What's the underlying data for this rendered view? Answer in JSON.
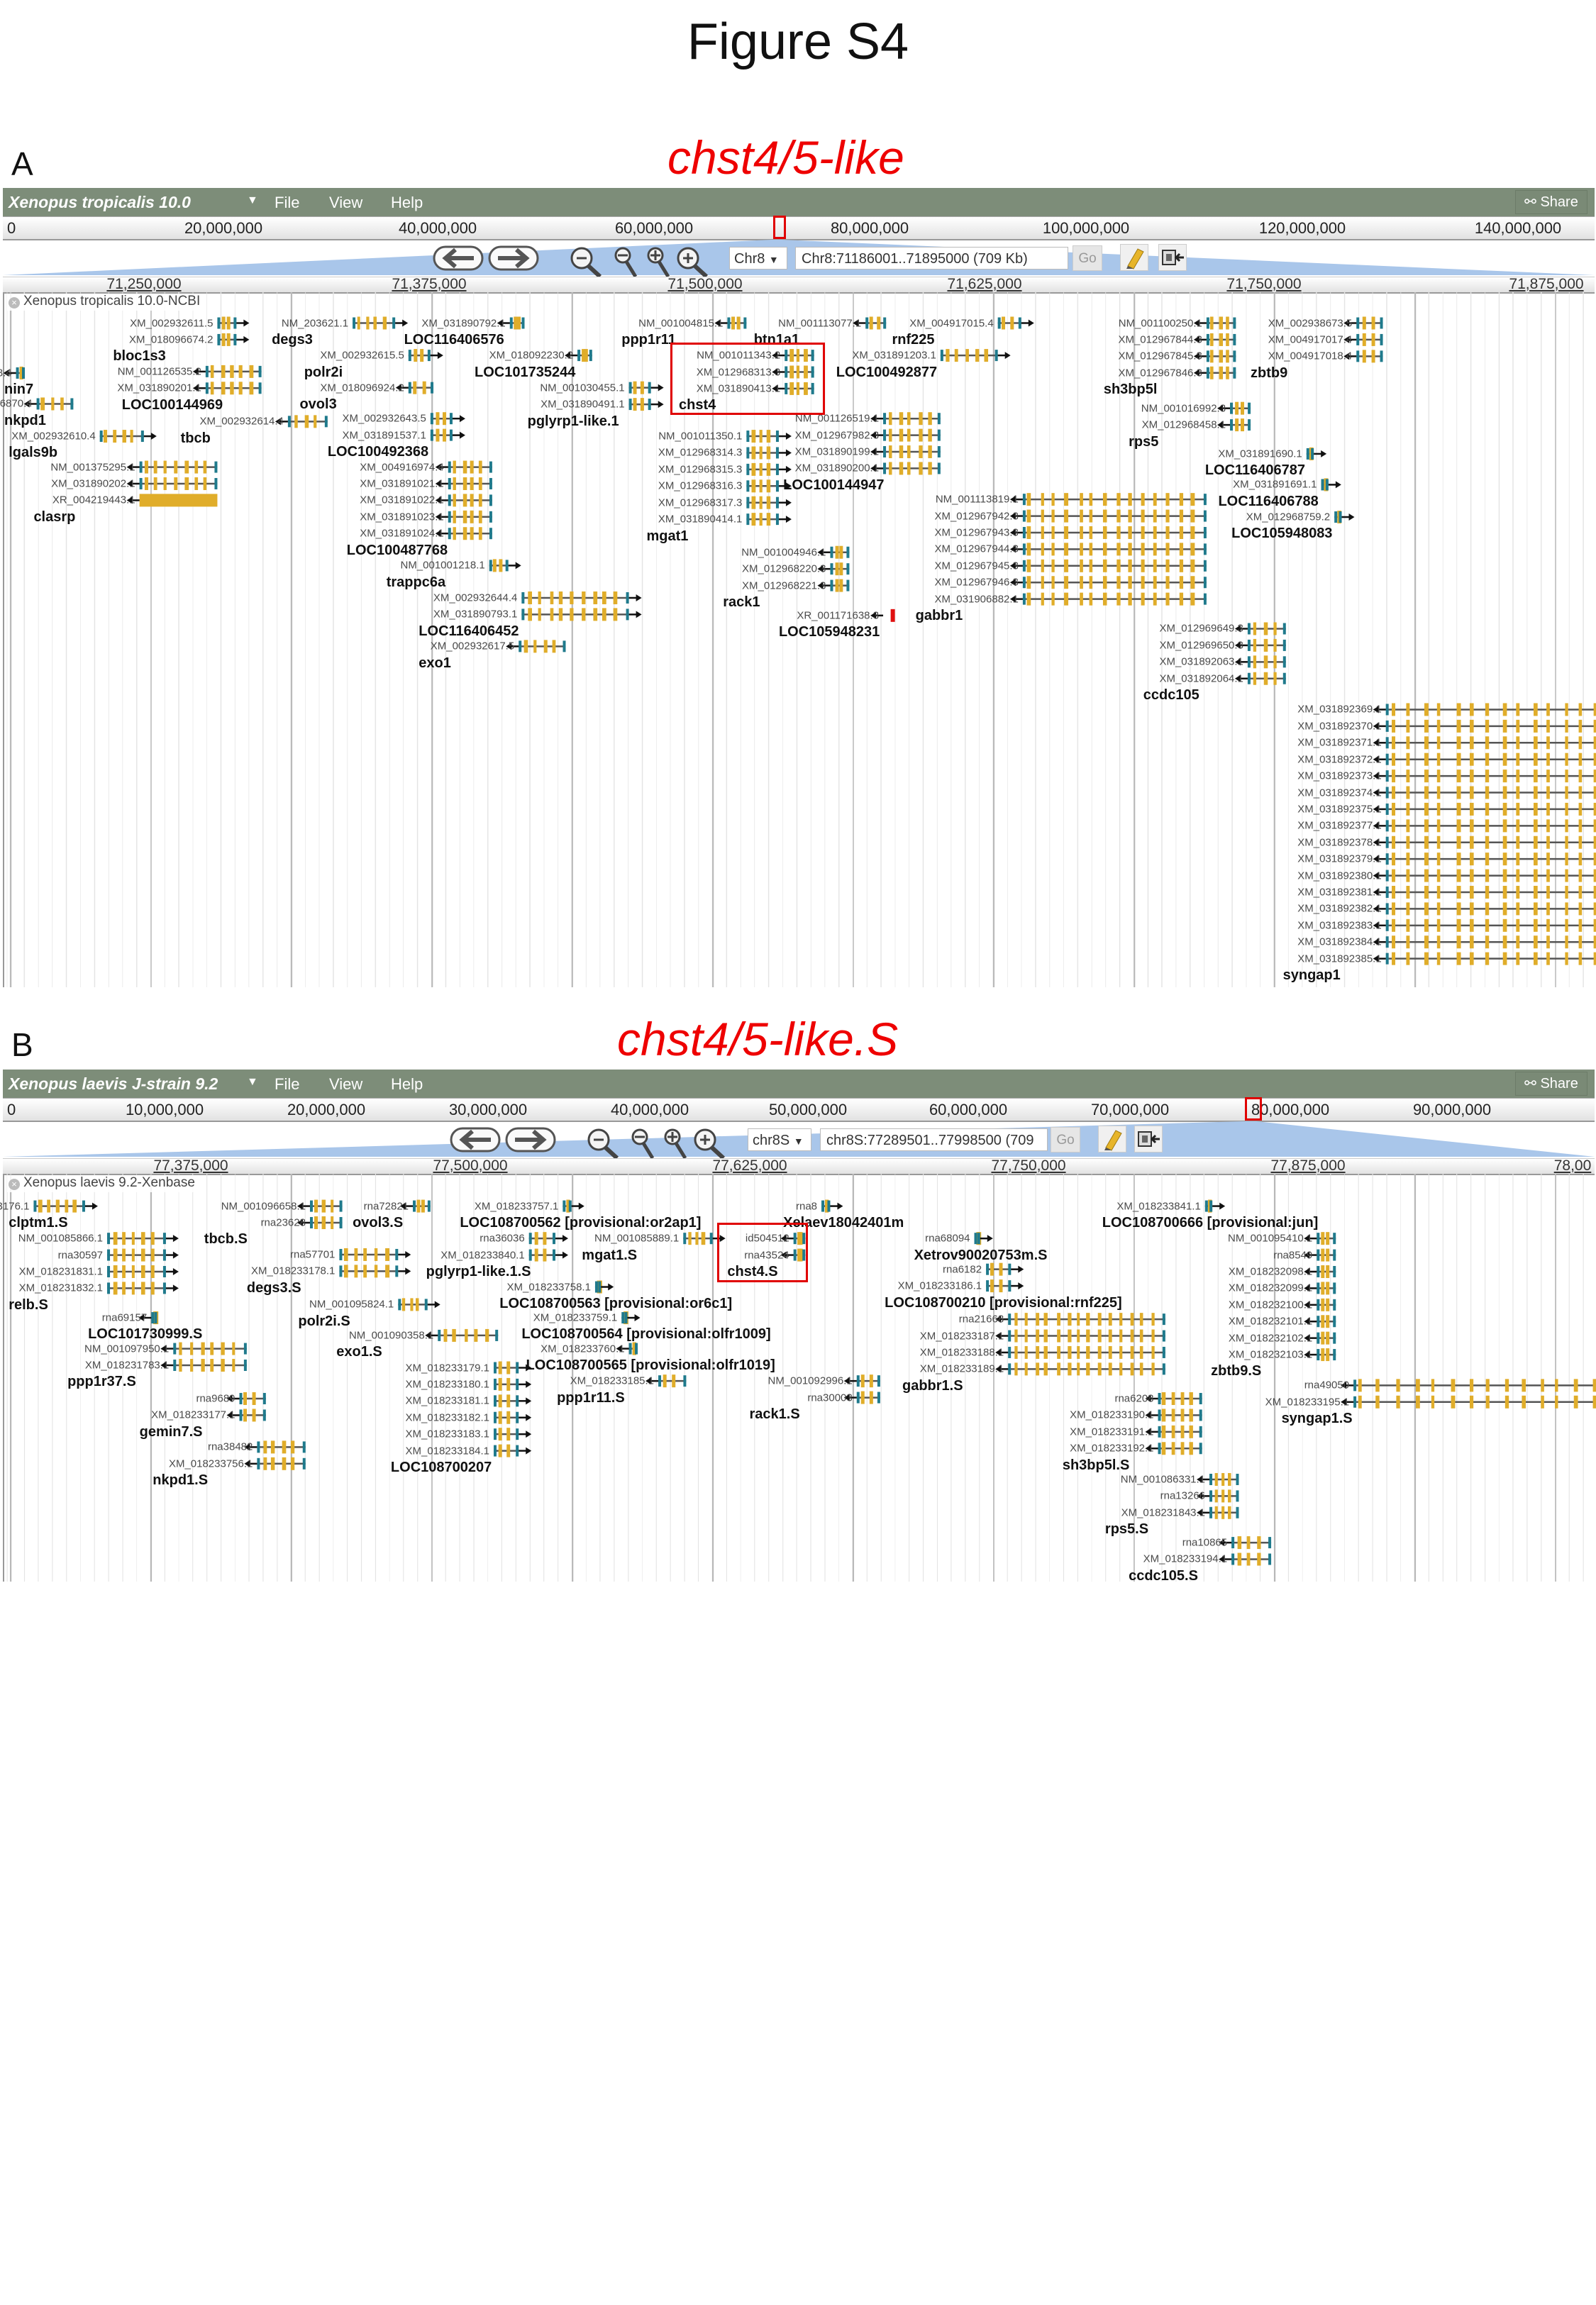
{
  "figure_title": "Figure S4",
  "colors": {
    "toolbar": "#7d8d79",
    "exon": "#e0ad2a",
    "utr": "#1f7a8c",
    "intron": "#555555",
    "annotation": "#ee0000",
    "ncrna": "#e01010",
    "overview_highlight": "#a9c6ea"
  },
  "panels": [
    {
      "letter": "A",
      "assembly": "Xenopus tropicalis 10.0",
      "menu": [
        "File",
        "View",
        "Help"
      ],
      "share": "Share",
      "overview_ticks": [
        "0",
        "20,000,000",
        "40,000,000",
        "60,000,000",
        "80,000,000",
        "100,000,000",
        "120,000,000",
        "140,000,000"
      ],
      "refseq": "Chr8",
      "location": "Chr8:71186001..71895000 (709 Kb)",
      "go": "Go",
      "detail_ticks": [
        "71,250,000",
        "71,375,000",
        "71,500,000",
        "71,625,000",
        "71,750,000",
        "71,875,000"
      ],
      "track_label": "Xenopus tropicalis 10.0-NCBI",
      "annotation": "chst4/5-like",
      "genes": [
        {
          "name": "bloc1s3",
          "strand": "+",
          "transcripts": [
            "XM_002932611.5",
            "XM_018096674.2"
          ]
        },
        {
          "name": "degs3",
          "strand": "+",
          "transcripts": [
            "NM_203621.1"
          ]
        },
        {
          "name": "LOC116406576",
          "strand": "-",
          "transcripts": [
            "XM_031890792.1"
          ]
        },
        {
          "name": "ppp1r11",
          "strand": "-",
          "transcripts": [
            "NM_001004815.1"
          ]
        },
        {
          "name": "btn1a1",
          "strand": "-",
          "transcripts": [
            "NM_001113077.1"
          ]
        },
        {
          "name": "rnf225",
          "strand": "+",
          "transcripts": [
            "XM_004917015.4"
          ]
        },
        {
          "name": "sh3bp5l",
          "strand": "-",
          "transcripts": [
            "NM_001100250.1",
            "XM_012967844.3",
            "XM_012967845.3",
            "XM_012967846.3"
          ]
        },
        {
          "name": "zbtb9",
          "strand": "-",
          "transcripts": [
            "XM_002938673.5",
            "XM_004917017.4",
            "XM_004917018.4"
          ]
        },
        {
          "name": "polr2i",
          "strand": "+",
          "transcripts": [
            "XM_002932615.5"
          ]
        },
        {
          "name": "LOC101735244",
          "strand": "-",
          "transcripts": [
            "XM_018092230.2"
          ]
        },
        {
          "name": "chst4",
          "strand": "-",
          "transcripts": [
            "NM_001011343.2",
            "XM_012968313.3",
            "XM_031890413.1"
          ]
        },
        {
          "name": "LOC100492877",
          "strand": "+",
          "transcripts": [
            "XM_031891203.1"
          ]
        },
        {
          "name": "LOC100144969",
          "strand": "-",
          "transcripts": [
            "NM_001126535.2",
            "XM_031890201.1"
          ]
        },
        {
          "name": "ovol3",
          "strand": "-",
          "transcripts": [
            "XM_018096924.2"
          ]
        },
        {
          "name": "pglyrp1-like.1",
          "strand": "+",
          "transcripts": [
            "NM_001030455.1",
            "XM_031890491.1"
          ]
        },
        {
          "name": "nin7",
          "strand": "-",
          "transcripts": [
            "8.4"
          ]
        },
        {
          "name": "nkpd1",
          "strand": "-",
          "transcripts": [
            "4916870.4"
          ]
        },
        {
          "name": "lgals9b",
          "strand": "+",
          "transcripts": [
            "XM_002932610.4"
          ]
        },
        {
          "name": "tbcb",
          "strand": "-",
          "transcripts": [
            "XM_002932614.4"
          ]
        },
        {
          "name": "LOC100492368",
          "strand": "+",
          "transcripts": [
            "XM_002932643.5",
            "XM_031891537.1"
          ]
        },
        {
          "name": "rps5",
          "strand": "-",
          "transcripts": [
            "NM_001016992.3",
            "XM_012968458.1"
          ]
        },
        {
          "name": "LOC100144947",
          "strand": "-",
          "transcripts": [
            "NM_001126519.1",
            "XM_012967982.3",
            "XM_031890199.1",
            "XM_031890200.1"
          ]
        },
        {
          "name": "mgat1",
          "strand": "+",
          "transcripts": [
            "NM_001011350.1",
            "XM_012968314.3",
            "XM_012968315.3",
            "XM_012968316.3",
            "XM_012968317.3",
            "XM_031890414.1"
          ]
        },
        {
          "name": "clasrp",
          "strand": "-",
          "transcripts": [
            "NM_001375295.1",
            "XM_031890202.1",
            "XR_004219443.1"
          ]
        },
        {
          "name": "LOC100487768",
          "strand": "-",
          "transcripts": [
            "XM_004916974.4",
            "XM_031891021.1",
            "XM_031891022.1",
            "XM_031891023.1",
            "XM_031891024.1"
          ]
        },
        {
          "name": "LOC116406787",
          "strand": "+",
          "transcripts": [
            "XM_031891690.1"
          ]
        },
        {
          "name": "LOC116406788",
          "strand": "+",
          "transcripts": [
            "XM_031891691.1"
          ]
        },
        {
          "name": "LOC105948083",
          "strand": "+",
          "transcripts": [
            "XM_012968759.2"
          ]
        },
        {
          "name": "gabbr1",
          "strand": "-",
          "transcripts": [
            "NM_001113819.1",
            "XM_012967942.3",
            "XM_012967943.3",
            "XM_012967944.3",
            "XM_012967945.3",
            "XM_012967946.3",
            "XM_031906882.1"
          ]
        },
        {
          "name": "trappc6a",
          "strand": "+",
          "transcripts": [
            "NM_001001218.1"
          ]
        },
        {
          "name": "rack1",
          "strand": "-",
          "transcripts": [
            "NM_001004946.1",
            "XM_012968220.3",
            "XM_012968221.3"
          ]
        },
        {
          "name": "LOC116406452",
          "strand": "+",
          "transcripts": [
            "XM_002932644.4",
            "XM_031890793.1"
          ]
        },
        {
          "name": "LOC105948231",
          "strand": "-",
          "transcripts": [
            "XR_001171638.3"
          ]
        },
        {
          "name": "ccdc105",
          "strand": "-",
          "transcripts": [
            "XM_012969649.3",
            "XM_012969650.3",
            "XM_031892063.1",
            "XM_031892064.1"
          ]
        },
        {
          "name": "exo1",
          "strand": "-",
          "transcripts": [
            "XM_002932617.5"
          ]
        },
        {
          "name": "syngap1",
          "strand": "-",
          "transcripts": [
            "XM_031892369.1",
            "XM_031892370.1",
            "XM_031892371.1",
            "XM_031892372.1",
            "XM_031892373.1",
            "XM_031892374.1",
            "XM_031892375.1",
            "XM_031892377.1",
            "XM_031892378.1",
            "XM_031892379.1",
            "XM_031892380.1",
            "XM_031892381.1",
            "XM_031892382.1",
            "XM_031892383.1",
            "XM_031892384.1",
            "XM_031892385.1"
          ]
        }
      ]
    },
    {
      "letter": "B",
      "assembly": "Xenopus laevis J-strain 9.2",
      "menu": [
        "File",
        "View",
        "Help"
      ],
      "share": "Share",
      "overview_ticks": [
        "0",
        "10,000,000",
        "20,000,000",
        "30,000,000",
        "40,000,000",
        "50,000,000",
        "60,000,000",
        "70,000,000",
        "80,000,000",
        "90,000,000"
      ],
      "refseq": "chr8S",
      "location": "chr8S:77289501..77998500 (709",
      "go": "Go",
      "detail_ticks": [
        "77,375,000",
        "77,500,000",
        "77,625,000",
        "77,750,000",
        "77,875,000",
        "78,00"
      ],
      "track_label": "Xenopus laevis 9.2-Xenbase",
      "annotation": "chst4/5-like.S",
      "genes": [
        {
          "name": "clptm1.S",
          "strand": "+",
          "transcripts": [
            "M_018233176.1"
          ]
        },
        {
          "name": "tbcb.S",
          "strand": "-",
          "transcripts": [
            "NM_001096658.1",
            "rna23628"
          ]
        },
        {
          "name": "ovol3.S",
          "strand": "-",
          "transcripts": [
            "rna72821"
          ]
        },
        {
          "name": "LOC108700562 [provisional:or2ap1]",
          "strand": "+",
          "transcripts": [
            "XM_018233757.1"
          ]
        },
        {
          "name": "Xelaev18042401m",
          "strand": "+",
          "transcripts": [
            "rna8"
          ]
        },
        {
          "name": "LOC108700666 [provisional:jun]",
          "strand": "+",
          "transcripts": [
            "XM_018233841.1"
          ]
        },
        {
          "name": "relb.S",
          "strand": "+",
          "transcripts": [
            "NM_001085866.1",
            "rna30597",
            "XM_018231831.1",
            "XM_018231832.1"
          ]
        },
        {
          "name": "pglyrp1-like.1.S",
          "strand": "+",
          "transcripts": [
            "rna36036",
            "XM_018233840.1"
          ]
        },
        {
          "name": "mgat1.S",
          "strand": "+",
          "transcripts": [
            "NM_001085889.1"
          ]
        },
        {
          "name": "chst4.S",
          "strand": "-",
          "transcripts": [
            "id504512",
            "rna43524"
          ]
        },
        {
          "name": "Xetrov90020753m.S",
          "strand": "+",
          "transcripts": [
            "rna68094"
          ]
        },
        {
          "name": "zbtb9.S",
          "strand": "-",
          "transcripts": [
            "NM_001095410.1",
            "rna8549",
            "XM_018232098.1",
            "XM_018232099.1",
            "XM_018232100.1",
            "XM_018232101.1",
            "XM_018232102.1",
            "XM_018232103.1"
          ]
        },
        {
          "name": "degs3.S",
          "strand": "+",
          "transcripts": [
            "rna57701",
            "XM_018233178.1"
          ]
        },
        {
          "name": "LOC108700210 [provisional:rnf225]",
          "strand": "+",
          "transcripts": [
            "rna6182",
            "XM_018233186.1"
          ]
        },
        {
          "name": "polr2i.S",
          "strand": "+",
          "transcripts": [
            "NM_001095824.1"
          ]
        },
        {
          "name": "LOC108700563 [provisional:or6c1]",
          "strand": "+",
          "transcripts": [
            "XM_018233758.1"
          ]
        },
        {
          "name": "LOC101730999.S",
          "strand": "-",
          "transcripts": [
            "rna69157"
          ]
        },
        {
          "name": "gabbr1.S",
          "strand": "-",
          "transcripts": [
            "rna21668",
            "XM_018233187.1",
            "XM_018233188.1",
            "XM_018233189.1"
          ]
        },
        {
          "name": "LOC108700564 [provisional:olfr1009]",
          "strand": "+",
          "transcripts": [
            "XM_018233759.1"
          ]
        },
        {
          "name": "exo1.S",
          "strand": "-",
          "transcripts": [
            "NM_001090358.1"
          ]
        },
        {
          "name": "ppp1r37.S",
          "strand": "-",
          "transcripts": [
            "NM_001097950.1",
            "XM_018231783.1"
          ]
        },
        {
          "name": "LOC108700565 [provisional:olfr1019]",
          "strand": "-",
          "transcripts": [
            "XM_018233760.1"
          ]
        },
        {
          "name": "LOC108700207",
          "strand": "+",
          "transcripts": [
            "XM_018233179.1",
            "XM_018233180.1",
            "XM_018233181.1",
            "XM_018233182.1",
            "XM_018233183.1",
            "XM_018233184.1"
          ]
        },
        {
          "name": "ppp1r11.S",
          "strand": "-",
          "transcripts": [
            "XM_018233185.1"
          ]
        },
        {
          "name": "rack1.S",
          "strand": "-",
          "transcripts": [
            "NM_001092996.1",
            "rna30003"
          ]
        },
        {
          "name": "syngap1.S",
          "strand": "-",
          "transcripts": [
            "rna49050",
            "XM_018233195.1"
          ]
        },
        {
          "name": "gemin7.S",
          "strand": "-",
          "transcripts": [
            "rna9689",
            "XM_018233177.1"
          ]
        },
        {
          "name": "sh3bp5l.S",
          "strand": "-",
          "transcripts": [
            "rna6208",
            "XM_018233190.1",
            "XM_018233191.1",
            "XM_018233192.1"
          ]
        },
        {
          "name": "nkpd1.S",
          "strand": "-",
          "transcripts": [
            "rna38482",
            "XM_018233756.1"
          ]
        },
        {
          "name": "rps5.S",
          "strand": "-",
          "transcripts": [
            "NM_001086331.1",
            "rna13266",
            "XM_018231843.1"
          ]
        },
        {
          "name": "ccdc105.S",
          "strand": "-",
          "transcripts": [
            "rna10865",
            "XM_018233194.1"
          ]
        }
      ]
    }
  ]
}
